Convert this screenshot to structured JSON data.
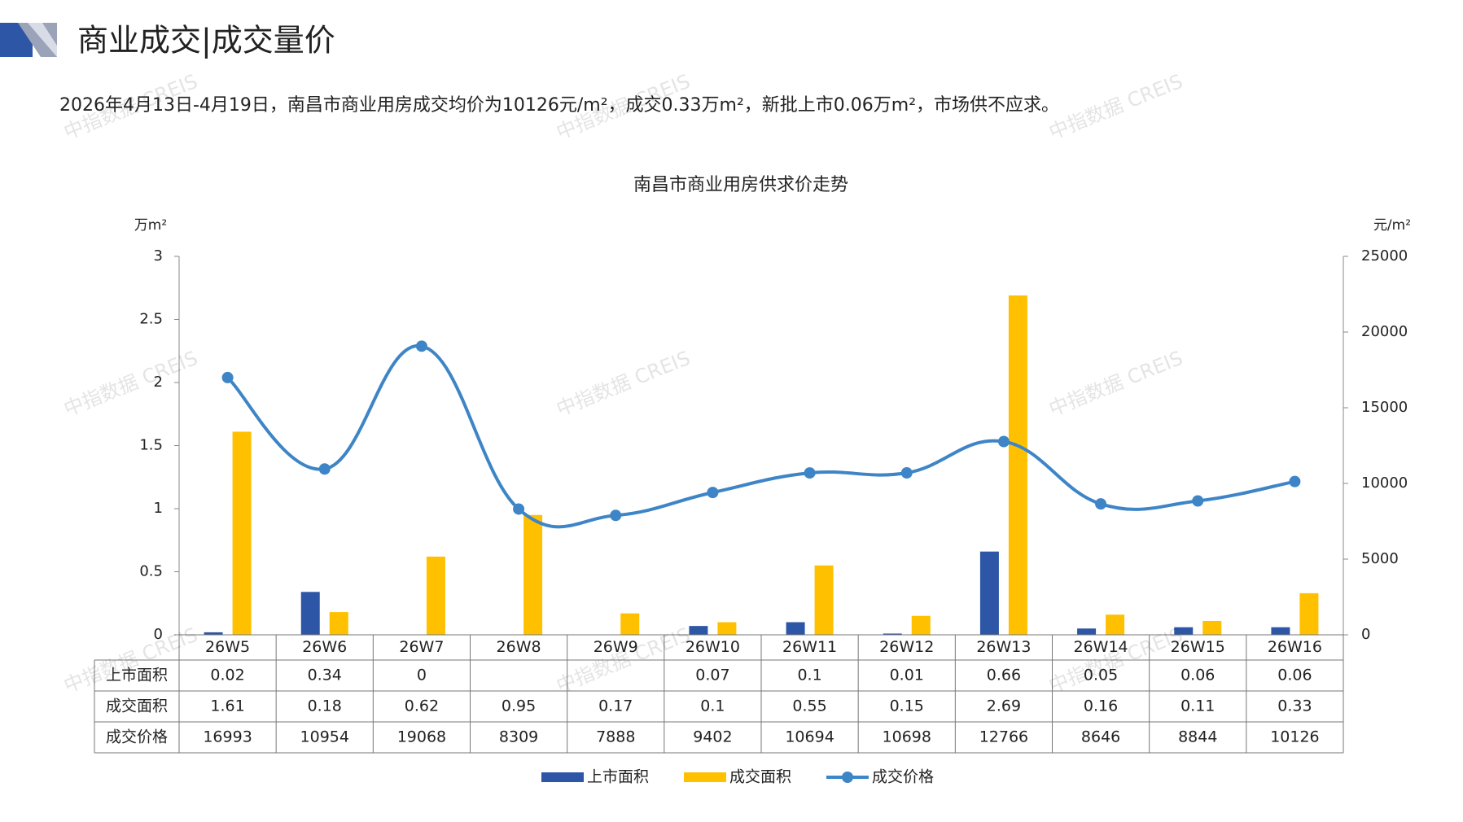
{
  "header": {
    "title": "商业成交|成交量价"
  },
  "summary": "2026年4月13日-4月19日，南昌市商业用房成交均价为10126元/m²，成交0.33万m²，新批上市0.06万m²，市场供不应求。",
  "watermark": "中指数据 CREIS",
  "chart_data": {
    "type": "bar",
    "title": "南昌市商业用房供求价走势",
    "ylabel": "万m²",
    "y2label": "元/m²",
    "categories": [
      "26W5",
      "26W6",
      "26W7",
      "26W8",
      "26W9",
      "26W10",
      "26W11",
      "26W12",
      "26W13",
      "26W14",
      "26W15",
      "26W16"
    ],
    "series": [
      {
        "name": "上市面积",
        "type": "bar",
        "color": "#2e56a6",
        "values": [
          0.02,
          0.34,
          0,
          null,
          null,
          0.07,
          0.1,
          0.01,
          0.66,
          0.05,
          0.06,
          0.06
        ]
      },
      {
        "name": "成交面积",
        "type": "bar",
        "color": "#ffc000",
        "values": [
          1.61,
          0.18,
          0.62,
          0.95,
          0.17,
          0.1,
          0.55,
          0.15,
          2.69,
          0.16,
          0.11,
          0.33
        ]
      },
      {
        "name": "成交价格",
        "type": "line",
        "axis": "y2",
        "color": "#3d85c6",
        "values": [
          16993,
          10954,
          19068,
          8309,
          7888,
          9402,
          10694,
          10698,
          12766,
          8646,
          8844,
          10126
        ]
      }
    ],
    "ylim": [
      0,
      3
    ],
    "yticks": [
      0,
      0.5,
      1,
      1.5,
      2,
      2.5,
      3
    ],
    "y2lim": [
      0,
      25000
    ],
    "y2ticks": [
      0,
      5000,
      10000,
      15000,
      20000,
      25000
    ],
    "legend": "bottom"
  }
}
